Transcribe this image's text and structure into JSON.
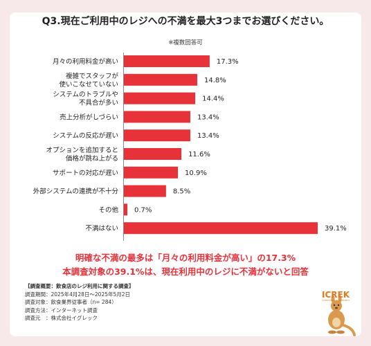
{
  "title": "Q3.現在ご利用中のレジへの不満を最大3つまでお選びください。",
  "note": "※複数回答可",
  "chart_data": {
    "type": "bar",
    "orientation": "horizontal",
    "unit": "%",
    "categories": [
      [
        "月々の利用料金が高い"
      ],
      [
        "複雑でスタッフが",
        "使いこなせていない"
      ],
      [
        "システムのトラブルや",
        "不具合が多い"
      ],
      [
        "売上分析がしづらい"
      ],
      [
        "システムの反応が遅い"
      ],
      [
        "オプションを追加すると",
        "価格が跳ね上がる"
      ],
      [
        "サポートの対応が遅い"
      ],
      [
        "外部システムの連携が不十分"
      ],
      [
        "その他"
      ],
      [
        "不満はない"
      ]
    ],
    "values": [
      17.3,
      14.8,
      14.4,
      13.4,
      13.4,
      11.6,
      10.9,
      8.5,
      0.7,
      39.1
    ],
    "value_labels": [
      "17.3%",
      "14.8%",
      "14.4%",
      "13.4%",
      "13.4%",
      "11.6%",
      "10.9%",
      "8.5%",
      "0.7%",
      "39.1%"
    ],
    "bar_color": "#e8323a",
    "grid": false,
    "legend": "none"
  },
  "highlight": {
    "line1": "明確な不満の最多は「月々の利用料金が高い」の17.3%",
    "line2": "本調査対象の39.1%は、現在利用中のレジに不満がないと回答"
  },
  "survey": {
    "heading": "【調査概要：飲食店のレジ利用に関する調査】",
    "lines": [
      "調査期間：2025年4月28日～2025年5月2日",
      "調査対象：飲食業界従事者（n= 284）",
      "調査方法：インターネット調査",
      "調査元　：株式会社イグレック"
    ]
  },
  "logo": {
    "text": "ICREK",
    "subtext": "CONSULTING & RESEARCH",
    "icon": "kangaroo-logo-icon"
  }
}
